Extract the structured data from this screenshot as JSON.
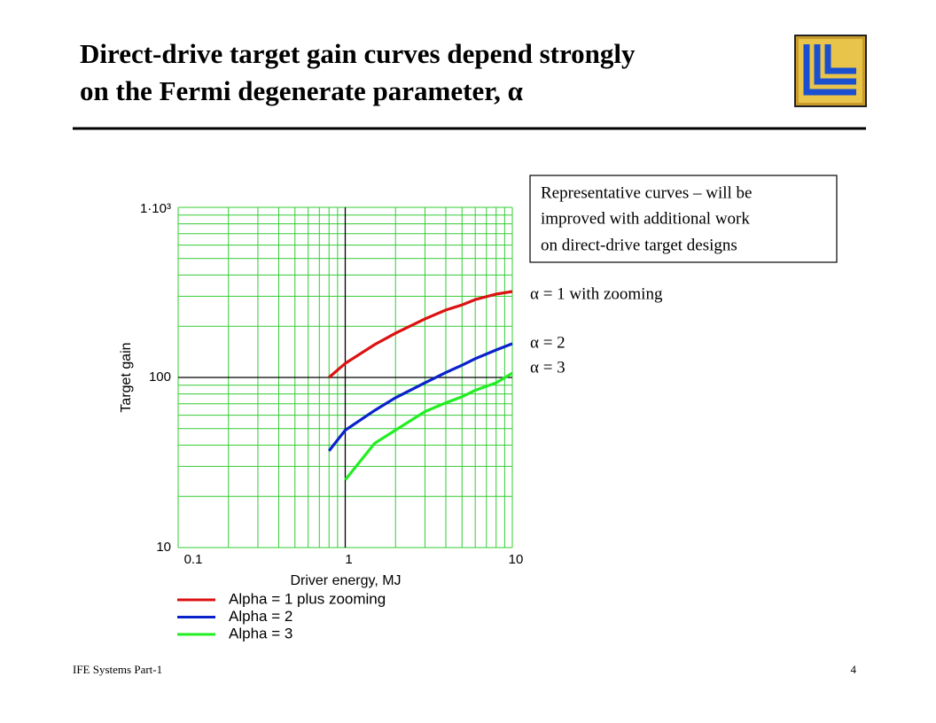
{
  "slide": {
    "title": [
      "Direct-drive target gain curves depend strongly",
      "on the Fermi degenerate parameter, α"
    ],
    "note": [
      "Representative curves – will be",
      "improved with additional work",
      "on direct-drive target designs"
    ],
    "footer": "IFE Systems Part-1",
    "page": "4"
  },
  "chart_data": {
    "type": "line",
    "xlabel": "Driver energy, MJ",
    "ylabel": "Target gain",
    "log_x": true,
    "log_y": true,
    "grid": true,
    "legend": "below",
    "xlim": [
      0.1,
      10
    ],
    "ylim": [
      10,
      1000
    ],
    "xticks": [
      0.1,
      1,
      10
    ],
    "yticks": [
      10,
      100,
      {
        "value": 1000,
        "label": "1·10³"
      }
    ],
    "xminorticks": [
      0.2,
      0.3,
      0.4,
      0.5,
      0.6,
      0.7,
      0.8,
      0.9,
      2,
      3,
      4,
      5,
      6,
      7,
      8,
      9
    ],
    "yminorticks": [
      20,
      30,
      40,
      50,
      60,
      70,
      80,
      90,
      200,
      300,
      400,
      500,
      600,
      700,
      800,
      900
    ],
    "crossing": {
      "x": 1,
      "y": 100
    },
    "x": [
      0.8,
      1,
      1.5,
      2,
      3,
      4,
      5,
      6,
      8,
      10
    ],
    "series": [
      {
        "name": "Alpha = 1 plus zooming",
        "color": "#dd1111",
        "values": [
          100,
          121,
          156,
          182,
          221,
          249,
          267,
          287,
          309,
          320
        ]
      },
      {
        "name": "Alpha = 2",
        "color": "#0a22cc",
        "values": [
          37,
          49,
          64,
          76,
          93,
          107,
          118,
          129,
          145,
          158
        ]
      },
      {
        "name": "Alpha = 3",
        "color": "#22ee22",
        "values": [
          null,
          25,
          41,
          49,
          63,
          71,
          77,
          84,
          93,
          106
        ]
      }
    ],
    "annotations": [
      "α = 1 with zooming",
      "α = 2",
      "α = 3"
    ]
  }
}
